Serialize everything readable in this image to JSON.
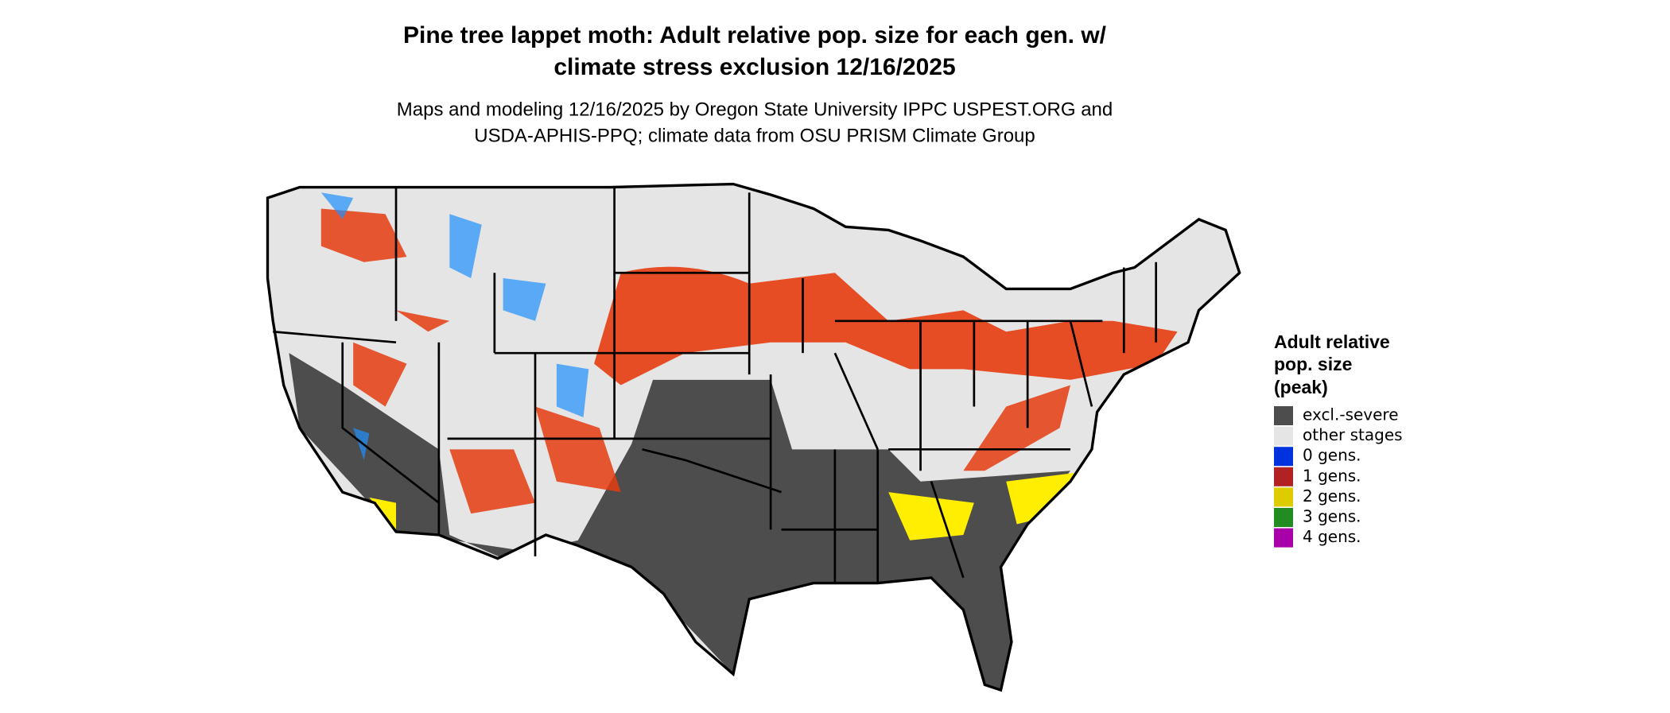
{
  "title": [
    "Pine tree lappet moth: Adult relative pop. size for each gen. w/",
    "climate stress exclusion 12/16/2025"
  ],
  "subtitle": [
    "Maps and modeling 12/16/2025 by Oregon State University IPPC USPEST.ORG and",
    "USDA-APHIS-PPQ; climate data from OSU PRISM Climate Group"
  ],
  "legend": {
    "title": [
      "Adult relative",
      "pop. size",
      "(peak)"
    ],
    "items": [
      {
        "label": "excl.-severe",
        "color": "#4d4d4d"
      },
      {
        "label": "other stages",
        "color": "#e5e5e5"
      },
      {
        "label": "0 gens.",
        "color": "#0033dd"
      },
      {
        "label": "1 gens.",
        "color": "#b22222"
      },
      {
        "label": "2 gens.",
        "color": "#ddcc00"
      },
      {
        "label": "3 gens.",
        "color": "#228b22"
      },
      {
        "label": "4 gens.",
        "color": "#aa00aa"
      }
    ]
  }
}
